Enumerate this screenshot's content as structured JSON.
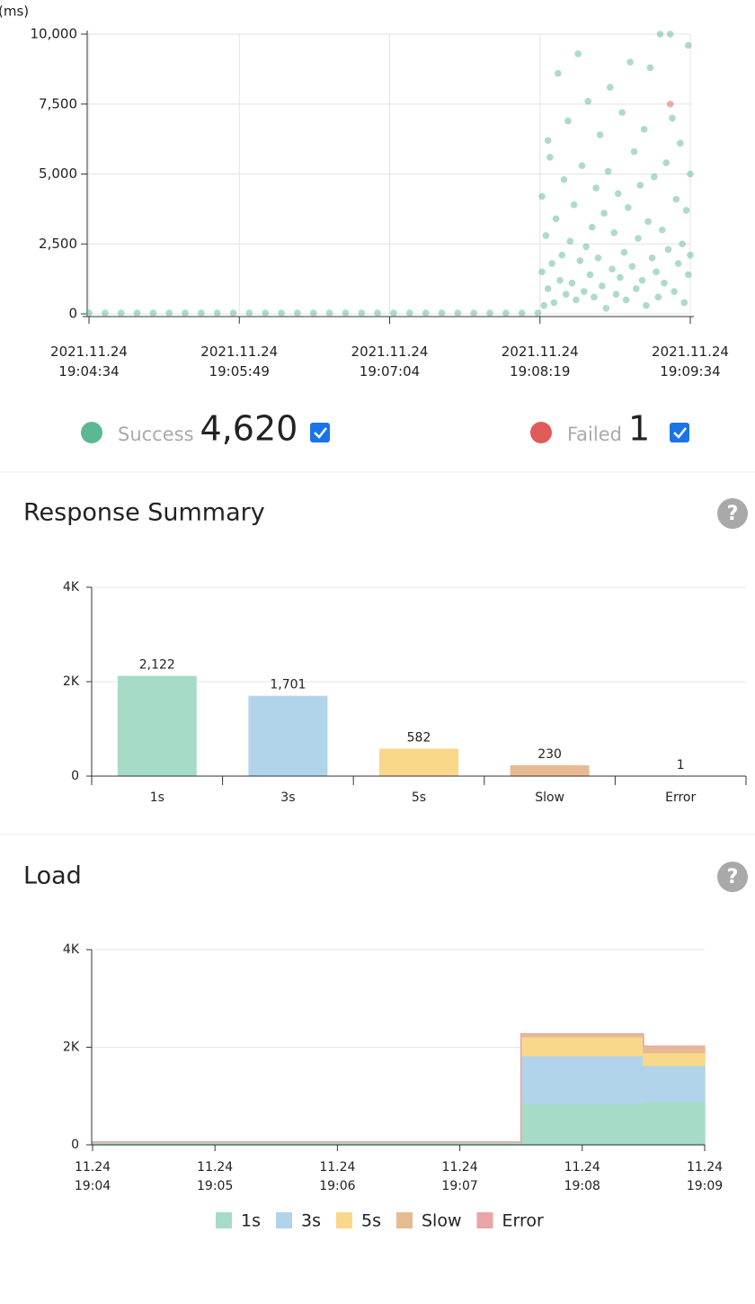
{
  "chart_data": [
    {
      "type": "scatter",
      "y_label": "(ms)",
      "xlim": [
        "2021.11.24 19:04:34",
        "2021.11.24 19:09:34"
      ],
      "xticks": [
        "2021.11.24\n19:04:34",
        "2021.11.24\n19:05:49",
        "2021.11.24\n19:07:04",
        "2021.11.24\n19:08:19",
        "2021.11.24\n19:09:34"
      ],
      "ylim": [
        0,
        10000
      ],
      "yticks": [
        0,
        {
          "value": 2500,
          "label": "2,500"
        },
        {
          "value": 5000,
          "label": "5,000"
        },
        {
          "value": 7500,
          "label": "7,500"
        },
        {
          "value": 10000,
          "label": "10,000"
        }
      ],
      "grid": true,
      "series": [
        {
          "name": "Success",
          "count": "4,620",
          "color": "#5cb892",
          "x": [
            "2021.11.24 19:04:34",
            "2021.11.24 19:04:42",
            "2021.11.24 19:04:50",
            "2021.11.24 19:04:58",
            "2021.11.24 19:05:06",
            "2021.11.24 19:05:14",
            "2021.11.24 19:05:22",
            "2021.11.24 19:05:30",
            "2021.11.24 19:05:38",
            "2021.11.24 19:05:46",
            "2021.11.24 19:05:54",
            "2021.11.24 19:06:02",
            "2021.11.24 19:06:10",
            "2021.11.24 19:06:18",
            "2021.11.24 19:06:26",
            "2021.11.24 19:06:34",
            "2021.11.24 19:06:42",
            "2021.11.24 19:06:50",
            "2021.11.24 19:06:58",
            "2021.11.24 19:07:06",
            "2021.11.24 19:07:14",
            "2021.11.24 19:07:22",
            "2021.11.24 19:07:30",
            "2021.11.24 19:07:38",
            "2021.11.24 19:07:46",
            "2021.11.24 19:07:54",
            "2021.11.24 19:08:02",
            "2021.11.24 19:08:10",
            "2021.11.24 19:08:18",
            "2021.11.24 19:08:20",
            "2021.11.24 19:08:20",
            "2021.11.24 19:08:21",
            "2021.11.24 19:08:22",
            "2021.11.24 19:08:23",
            "2021.11.24 19:08:23",
            "2021.11.24 19:08:24",
            "2021.11.24 19:08:25",
            "2021.11.24 19:08:26",
            "2021.11.24 19:08:27",
            "2021.11.24 19:08:28",
            "2021.11.24 19:08:29",
            "2021.11.24 19:08:30",
            "2021.11.24 19:08:31",
            "2021.11.24 19:08:32",
            "2021.11.24 19:08:33",
            "2021.11.24 19:08:34",
            "2021.11.24 19:08:35",
            "2021.11.24 19:08:36",
            "2021.11.24 19:08:37",
            "2021.11.24 19:08:38",
            "2021.11.24 19:08:39",
            "2021.11.24 19:08:40",
            "2021.11.24 19:08:41",
            "2021.11.24 19:08:42",
            "2021.11.24 19:08:43",
            "2021.11.24 19:08:44",
            "2021.11.24 19:08:45",
            "2021.11.24 19:08:46",
            "2021.11.24 19:08:47",
            "2021.11.24 19:08:48",
            "2021.11.24 19:08:49",
            "2021.11.24 19:08:50",
            "2021.11.24 19:08:51",
            "2021.11.24 19:08:52",
            "2021.11.24 19:08:53",
            "2021.11.24 19:08:54",
            "2021.11.24 19:08:55",
            "2021.11.24 19:08:56",
            "2021.11.24 19:08:57",
            "2021.11.24 19:08:58",
            "2021.11.24 19:08:59",
            "2021.11.24 19:09:00",
            "2021.11.24 19:09:01",
            "2021.11.24 19:09:02",
            "2021.11.24 19:09:03",
            "2021.11.24 19:09:04",
            "2021.11.24 19:09:05",
            "2021.11.24 19:09:06",
            "2021.11.24 19:09:07",
            "2021.11.24 19:09:08",
            "2021.11.24 19:09:09",
            "2021.11.24 19:09:10",
            "2021.11.24 19:09:11",
            "2021.11.24 19:09:12",
            "2021.11.24 19:09:13",
            "2021.11.24 19:09:14",
            "2021.11.24 19:09:15",
            "2021.11.24 19:09:16",
            "2021.11.24 19:09:17",
            "2021.11.24 19:09:18",
            "2021.11.24 19:09:19",
            "2021.11.24 19:09:20",
            "2021.11.24 19:09:21",
            "2021.11.24 19:09:22",
            "2021.11.24 19:09:23",
            "2021.11.24 19:09:24",
            "2021.11.24 19:09:25",
            "2021.11.24 19:09:26",
            "2021.11.24 19:09:27",
            "2021.11.24 19:09:28",
            "2021.11.24 19:09:29",
            "2021.11.24 19:09:30",
            "2021.11.24 19:09:31",
            "2021.11.24 19:09:32",
            "2021.11.24 19:09:33",
            "2021.11.24 19:09:33",
            "2021.11.24 19:09:34",
            "2021.11.24 19:09:34"
          ],
          "values": [
            30,
            30,
            30,
            30,
            30,
            30,
            30,
            30,
            30,
            30,
            30,
            30,
            30,
            30,
            30,
            30,
            30,
            30,
            30,
            30,
            30,
            30,
            30,
            30,
            30,
            30,
            30,
            30,
            30,
            4200,
            1500,
            300,
            2800,
            6200,
            900,
            5600,
            1800,
            400,
            3400,
            8600,
            1200,
            2100,
            4800,
            700,
            6900,
            2600,
            1100,
            3900,
            500,
            9300,
            1900,
            5300,
            800,
            2400,
            7600,
            1400,
            3100,
            600,
            4500,
            2000,
            6400,
            1000,
            3600,
            200,
            5100,
            8100,
            1600,
            2900,
            700,
            4300,
            1300,
            7200,
            2200,
            500,
            3800,
            9000,
            1700,
            5800,
            900,
            2700,
            4600,
            1200,
            6600,
            300,
            3300,
            8800,
            2000,
            4900,
            1500,
            600,
            10000,
            3000,
            1100,
            5400,
            2300,
            10000,
            7000,
            800,
            4100,
            1800,
            6100,
            2500,
            400,
            3700,
            1400,
            9600,
            2100,
            5000
          ]
        },
        {
          "name": "Failed",
          "count": "1",
          "color": "#e05a5a",
          "x": [
            "2021.11.24 19:09:24"
          ],
          "values": [
            7500
          ]
        }
      ]
    },
    {
      "type": "bar",
      "title": "Response Summary",
      "categories": [
        "1s",
        "3s",
        "5s",
        "Slow",
        "Error"
      ],
      "values": [
        2122,
        1701,
        582,
        230,
        1
      ],
      "value_labels": [
        "2,122",
        "1,701",
        "582",
        "230",
        "1"
      ],
      "colors": [
        "#a6dbc8",
        "#b2d4eb",
        "#fad88a",
        "#e7bb92",
        "#eaa4a6"
      ],
      "ylim": [
        0,
        4000
      ],
      "yticks": [
        0,
        {
          "value": 2000,
          "label": "2K"
        },
        {
          "value": 4000,
          "label": "4K"
        }
      ],
      "grid": true
    },
    {
      "type": "area",
      "title": "Load",
      "stacked": true,
      "categories": [
        "11.24\n19:04",
        "11.24\n19:05",
        "11.24\n19:06",
        "11.24\n19:07",
        "11.24\n19:08",
        "11.24\n19:09"
      ],
      "ylim": [
        0,
        4000
      ],
      "yticks": [
        0,
        {
          "value": 2000,
          "label": "2K"
        },
        {
          "value": 4000,
          "label": "4K"
        }
      ],
      "grid": true,
      "series": [
        {
          "name": "1s",
          "color": "#a6dbc8",
          "values": [
            60,
            60,
            60,
            60,
            860,
            900
          ]
        },
        {
          "name": "3s",
          "color": "#b2d4eb",
          "values": [
            0,
            0,
            0,
            0,
            970,
            730
          ]
        },
        {
          "name": "5s",
          "color": "#fad88a",
          "values": [
            0,
            0,
            0,
            0,
            385,
            260
          ]
        },
        {
          "name": "Slow",
          "color": "#e7bb92",
          "values": [
            0,
            0,
            0,
            0,
            60,
            130
          ]
        },
        {
          "name": "Error",
          "color": "#eaa4a6",
          "values": [
            0,
            0,
            0,
            0,
            0,
            0
          ]
        }
      ]
    }
  ]
}
